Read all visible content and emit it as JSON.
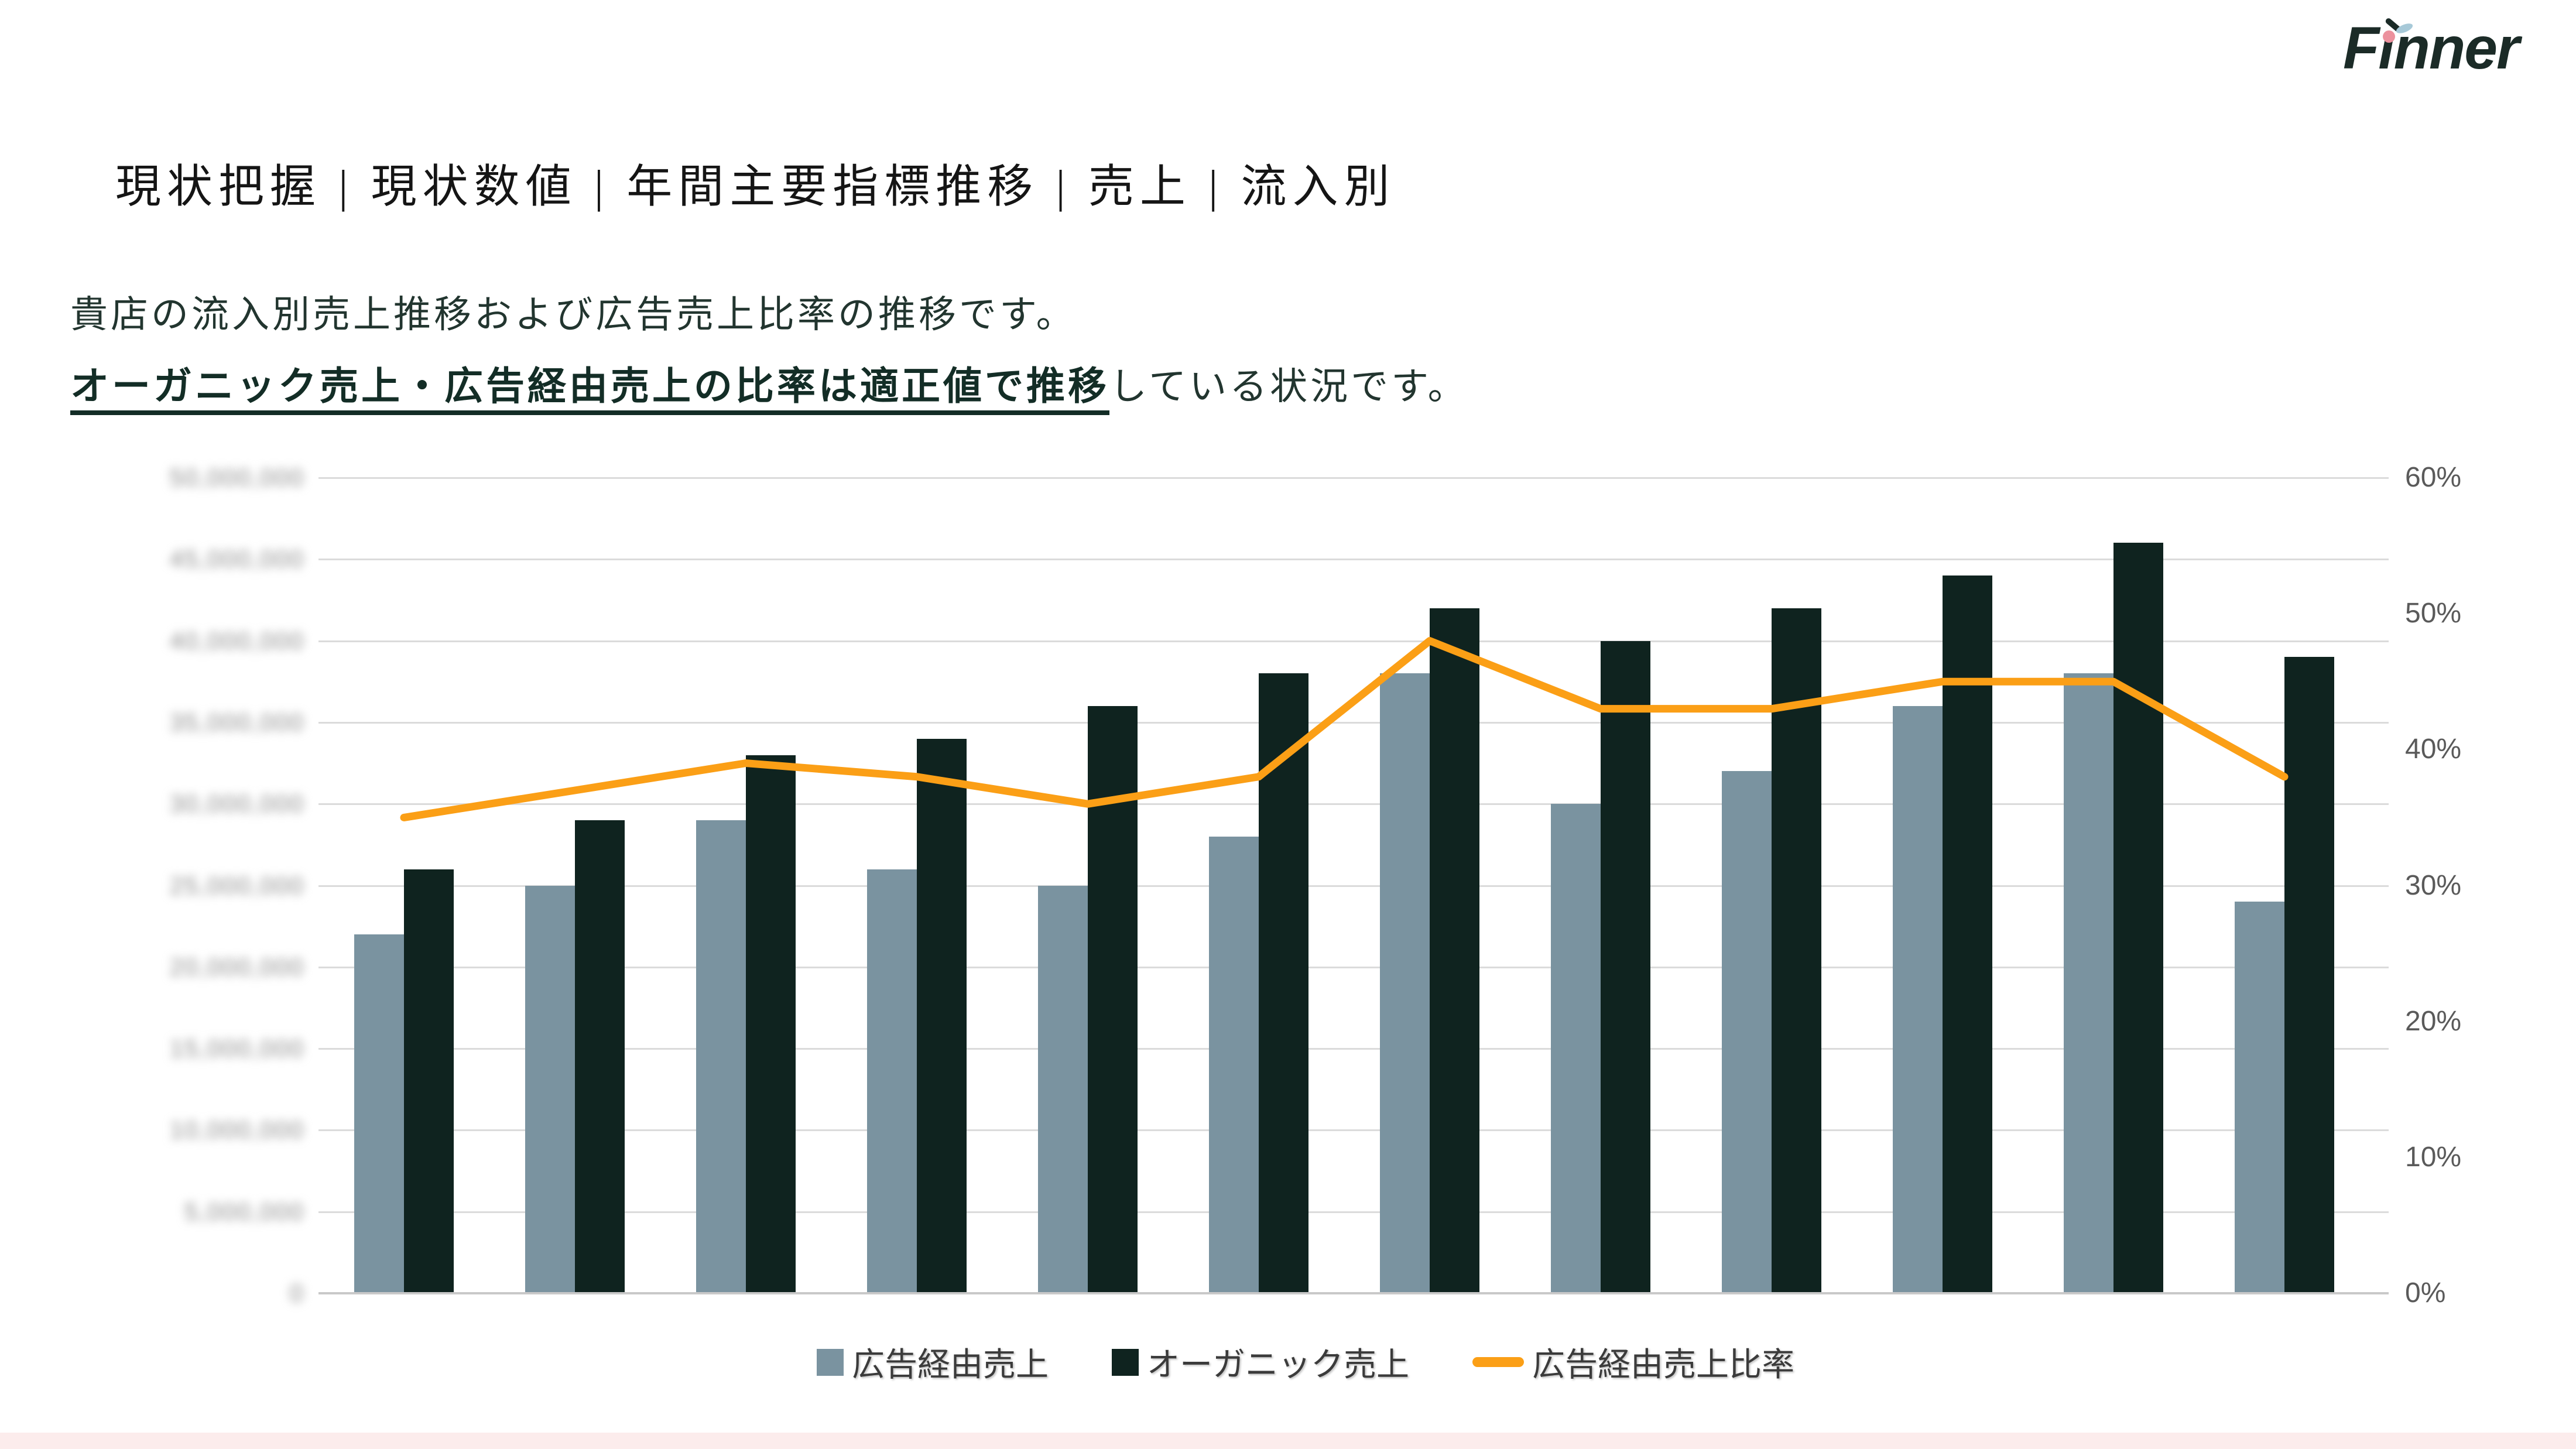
{
  "logo": {
    "brand": "Finner",
    "wordmark_display": "Fınner",
    "colors": {
      "text": "#1b2b27",
      "dot": "#ec919d",
      "leaf": "#a7c9d8"
    }
  },
  "header": {
    "title": "現状把握 | 現状数値 | 年間主要指標推移 | 売上 | 流入別"
  },
  "description": {
    "line1": "貴店の流入別売上推移および広告売上比率の推移です。",
    "line2_emphasis": "オーガニック売上・広告経由売上の比率は適正値で推移",
    "line2_rest": "している状況です。"
  },
  "chart_data": {
    "type": "combo (bar + line, dual axis)",
    "categories": [
      "1",
      "2",
      "3",
      "4",
      "5",
      "6",
      "7",
      "8",
      "9",
      "10",
      "11",
      "12"
    ],
    "x_axis_labels_visible": false,
    "series": [
      {
        "name": "広告経由売上",
        "type": "bar",
        "axis": "left",
        "color": "#7a93a0",
        "values": [
          22000000,
          25000000,
          29000000,
          26000000,
          25000000,
          28000000,
          38000000,
          30000000,
          32000000,
          36000000,
          38000000,
          24000000
        ]
      },
      {
        "name": "オーガニック売上",
        "type": "bar",
        "axis": "left",
        "color": "#0f231f",
        "values": [
          26000000,
          29000000,
          33000000,
          34000000,
          36000000,
          38000000,
          42000000,
          40000000,
          42000000,
          44000000,
          46000000,
          39000000
        ]
      },
      {
        "name": "広告経由売上比率",
        "type": "line",
        "axis": "right",
        "color": "#fb9f16",
        "values_percent": [
          35,
          37,
          39,
          38,
          36,
          38,
          48,
          43,
          43,
          45,
          45,
          38
        ]
      }
    ],
    "left_axis": {
      "min": 0,
      "max": 50000000,
      "blurred": true,
      "tick_labels": [
        "50,000,000",
        "45,000,000",
        "40,000,000",
        "35,000,000",
        "30,000,000",
        "25,000,000",
        "20,000,000",
        "15,000,000",
        "10,000,000",
        "5,000,000",
        "0"
      ]
    },
    "right_axis": {
      "min": 0,
      "max": 60,
      "tick_labels": [
        "60%",
        "50%",
        "40%",
        "30%",
        "20%",
        "10%",
        "0%"
      ]
    },
    "gridlines": {
      "count": 11,
      "color": "#dbdbdb"
    }
  },
  "footer": {
    "accent_bar_color": "#fcecec"
  }
}
